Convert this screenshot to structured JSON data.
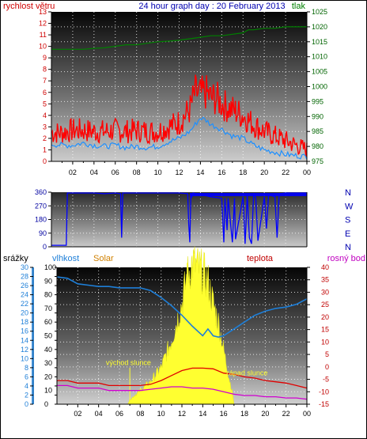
{
  "header": {
    "left_label": "rychlost větru",
    "title": "24 hour graph day : 20 February 2013",
    "right_label": "tlak"
  },
  "bottom_header": {
    "precip_label": "srážky",
    "humidity_label": "vlhkost",
    "solar_label": "Solar",
    "temp_label": "teplota",
    "dew_label": "rosný bod"
  },
  "colors": {
    "wind": "#ff0000",
    "wind_avg": "#1e90ff",
    "pressure": "#008000",
    "direction": "#0000ff",
    "humidity": "#1e7fd8",
    "temperature": "#e00000",
    "dewpoint": "#d000d0",
    "solar": "#ffff30",
    "left_axis_wind": "#d00000",
    "right_axis_pressure": "#006400",
    "humidity_axis": "#1e7fd8",
    "solar_axis": "#a06000",
    "temp_axis": "#c00000"
  },
  "x_ticks": [
    "02",
    "04",
    "06",
    "08",
    "10",
    "12",
    "14",
    "16",
    "18",
    "20",
    "22",
    "00"
  ],
  "chart_data": [
    {
      "type": "line",
      "name": "wind-pressure",
      "x_range_hours": [
        0,
        24
      ],
      "left_axis": {
        "label": "rychlost větru",
        "ticks": [
          "0",
          "1",
          "2",
          "3",
          "4",
          "5",
          "6",
          "7",
          "8",
          "9",
          "10",
          "11",
          "12",
          "13"
        ],
        "ylim": [
          0,
          13
        ]
      },
      "right_axis": {
        "label": "tlak",
        "ticks": [
          "975",
          "980",
          "985",
          "990",
          "995",
          "1000",
          "1005",
          "1010",
          "1015",
          "1020",
          "1025"
        ],
        "ylim": [
          975,
          1025
        ]
      },
      "series": [
        {
          "key": "wind_gust",
          "x": [
            0,
            1,
            2,
            3,
            4,
            5,
            6,
            7,
            8,
            9,
            10,
            11,
            12,
            13,
            13.5,
            14,
            14.5,
            15,
            15.5,
            16,
            17,
            18,
            19,
            20,
            21,
            22,
            23,
            24
          ],
          "values": [
            2.5,
            2.5,
            2.7,
            2.7,
            2.6,
            2.6,
            2.7,
            2.6,
            2.7,
            2.6,
            2.6,
            3.0,
            3.4,
            4.5,
            6.0,
            5.8,
            6.0,
            5.5,
            5.5,
            5.0,
            4.5,
            4.0,
            3.2,
            2.6,
            2.2,
            1.8,
            1.4,
            1.0
          ]
        },
        {
          "key": "wind_avg",
          "x": [
            0,
            1,
            2,
            3,
            4,
            5,
            6,
            7,
            8,
            9,
            10,
            11,
            12,
            13,
            13.5,
            14,
            14.5,
            15,
            15.5,
            16,
            17,
            18,
            19,
            20,
            21,
            22,
            23,
            24
          ],
          "values": [
            1.5,
            1.4,
            1.4,
            1.6,
            1.4,
            1.3,
            1.4,
            1.2,
            1.3,
            1.2,
            1.3,
            1.7,
            2.0,
            2.6,
            3.2,
            3.8,
            3.6,
            3.2,
            3.0,
            2.8,
            2.2,
            2.0,
            1.4,
            1.0,
            0.8,
            0.6,
            0.5,
            0.4
          ]
        },
        {
          "key": "pressure",
          "x": [
            0,
            2,
            3,
            4,
            5,
            6,
            7,
            8,
            9,
            10,
            11,
            12,
            13,
            14,
            15,
            16,
            17,
            18,
            18.5,
            19,
            20,
            21,
            22,
            23,
            24
          ],
          "values": [
            1012.5,
            1012.5,
            1012.5,
            1012.8,
            1013.0,
            1013.5,
            1014.0,
            1014.0,
            1014.5,
            1015.0,
            1015.2,
            1015.5,
            1016.0,
            1016.5,
            1017.0,
            1017.0,
            1017.5,
            1018.0,
            1019.0,
            1019.0,
            1019.5,
            1019.5,
            1020.0,
            1020.0,
            1020.0
          ]
        }
      ]
    },
    {
      "type": "line",
      "name": "wind-direction",
      "x_range_hours": [
        0,
        24
      ],
      "left_axis": {
        "ticks": [
          "0",
          "90",
          "180",
          "270",
          "360"
        ],
        "ylim": [
          0,
          360
        ]
      },
      "right_axis": {
        "ticks": [
          "N",
          "E",
          "S",
          "W",
          "N"
        ]
      },
      "series": [
        {
          "key": "direction",
          "x": [
            0,
            1,
            1.4,
            1.5,
            3,
            4,
            5,
            6,
            6.5,
            6.6,
            6.7,
            7,
            8,
            9,
            10,
            11,
            12,
            12.8,
            12.9,
            13.0,
            13.1,
            13.2,
            13.3,
            14,
            15,
            16,
            16.2,
            16.3,
            16.5,
            16.6,
            17,
            17.2,
            17.3,
            18,
            18.2,
            18.4,
            18.6,
            18.8,
            19,
            19.2,
            19.4,
            20,
            20.2,
            20.4,
            21,
            21.2,
            21.4,
            22,
            23,
            24
          ],
          "values": [
            10,
            10,
            10,
            355,
            355,
            355,
            350,
            355,
            350,
            60,
            355,
            355,
            355,
            355,
            355,
            355,
            355,
            350,
            150,
            30,
            350,
            330,
            355,
            345,
            330,
            320,
            30,
            320,
            110,
            320,
            30,
            320,
            50,
            330,
            20,
            340,
            60,
            20,
            350,
            320,
            40,
            330,
            120,
            345,
            330,
            60,
            350,
            355,
            355,
            355
          ]
        }
      ]
    },
    {
      "type": "line",
      "name": "humidity-solar-temperature",
      "x_range_hours": [
        0,
        24
      ],
      "precip_axis": {
        "ticks": [
          "0",
          "2",
          "4",
          "6",
          "8",
          "10",
          "12",
          "14",
          "16",
          "18",
          "20",
          "22",
          "24",
          "26",
          "28",
          "30"
        ],
        "ylim": [
          0,
          30
        ]
      },
      "humidity_axis": {
        "ticks": [
          "0",
          "10",
          "20",
          "30",
          "40",
          "50",
          "60",
          "70",
          "80",
          "90",
          "100"
        ],
        "ylim": [
          0,
          100
        ]
      },
      "temp_axis": {
        "ticks": [
          "-15",
          "-10",
          "-5",
          "0",
          "5",
          "10",
          "15",
          "20",
          "25",
          "30",
          "35",
          "40"
        ],
        "ylim": [
          -15,
          40
        ]
      },
      "annotations": [
        "východ slunce",
        "západ slunce"
      ],
      "series": [
        {
          "key": "humidity",
          "x": [
            0,
            1,
            2,
            3,
            4,
            5,
            6,
            7,
            8,
            9,
            10,
            11,
            12,
            13,
            14,
            14.5,
            15,
            15.5,
            16,
            17,
            18,
            19,
            20,
            21,
            22,
            23,
            24
          ],
          "values": [
            93,
            92,
            88,
            87,
            86,
            86,
            85,
            85,
            85,
            83,
            78,
            72,
            65,
            57,
            50,
            55,
            50,
            49,
            50,
            55,
            60,
            65,
            68,
            70,
            71,
            73,
            77
          ]
        },
        {
          "key": "temperature",
          "x": [
            0,
            1,
            2,
            3,
            4,
            5,
            6,
            7,
            8,
            9,
            10,
            11,
            12,
            13,
            14,
            15,
            16,
            17,
            18,
            19,
            20,
            21,
            22,
            23,
            24
          ],
          "values": [
            -5.5,
            -5.5,
            -6.5,
            -6.5,
            -6.5,
            -7.5,
            -7.5,
            -7.5,
            -7.5,
            -7.0,
            -5.5,
            -3.5,
            -1.5,
            -0.5,
            -0.5,
            -0.8,
            -2.5,
            -3.0,
            -4.0,
            -4.5,
            -5.5,
            -6.0,
            -6.5,
            -7.5,
            -8.5
          ]
        },
        {
          "key": "dewpoint",
          "x": [
            0,
            1,
            2,
            3,
            4,
            5,
            6,
            7,
            8,
            9,
            10,
            11,
            12,
            13,
            14,
            15,
            16,
            17,
            18,
            19,
            20,
            21,
            22,
            23,
            24
          ],
          "values": [
            -7.5,
            -7.5,
            -8.5,
            -8.5,
            -8.5,
            -9.5,
            -9.5,
            -9.5,
            -9.5,
            -9.0,
            -8.5,
            -8.0,
            -8.0,
            -8.5,
            -8.5,
            -9.0,
            -10.0,
            -11.0,
            -11.5,
            -11.5,
            -12.0,
            -12.0,
            -12.5,
            -12.5,
            -13.0
          ]
        },
        {
          "key": "solar",
          "x": [
            6.8,
            7,
            8,
            9,
            10,
            10.5,
            11,
            11.5,
            12,
            12.5,
            13,
            13.5,
            14,
            14.5,
            15,
            15.5,
            16,
            16.5,
            16.9,
            17.0
          ],
          "values": [
            0,
            1,
            3,
            5,
            8,
            11,
            14,
            18,
            22,
            28,
            31,
            30,
            29,
            27,
            22,
            18,
            12,
            6,
            2,
            0
          ]
        }
      ]
    }
  ]
}
